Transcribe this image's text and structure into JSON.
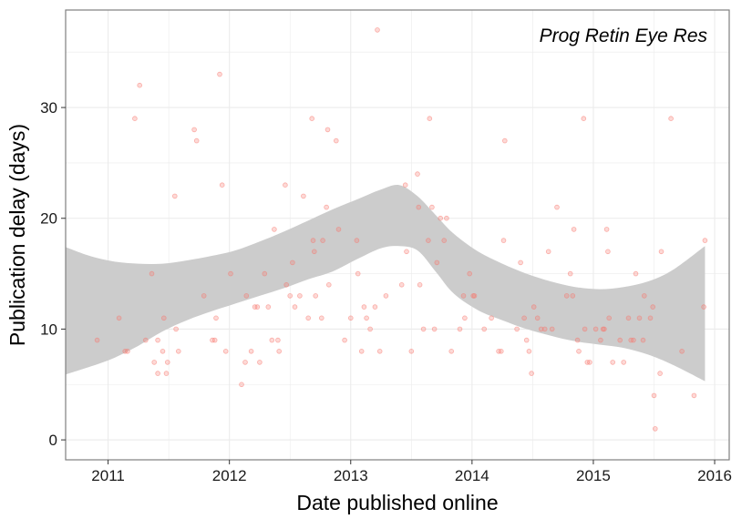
{
  "chart_data": {
    "type": "scatter",
    "annotation": "Prog Retin Eye Res",
    "xlabel": "Date published online",
    "ylabel": "Publication delay (days)",
    "xlim": [
      2010.65,
      2016.12
    ],
    "ylim": [
      -1.8,
      38.8
    ],
    "x_ticks": [
      2011,
      2012,
      2013,
      2014,
      2015,
      2016
    ],
    "y_ticks": [
      0,
      10,
      20,
      30
    ],
    "grid": true,
    "colors": {
      "points": "#f8766d",
      "band": "#cccccc",
      "grid": "#ebebeb",
      "frame": "#7f7f7f"
    },
    "points": [
      {
        "x": 2010.91,
        "y": 9
      },
      {
        "x": 2011.09,
        "y": 11
      },
      {
        "x": 2011.14,
        "y": 8
      },
      {
        "x": 2011.16,
        "y": 8
      },
      {
        "x": 2011.22,
        "y": 29
      },
      {
        "x": 2011.26,
        "y": 32
      },
      {
        "x": 2011.31,
        "y": 9
      },
      {
        "x": 2011.36,
        "y": 15
      },
      {
        "x": 2011.38,
        "y": 7
      },
      {
        "x": 2011.41,
        "y": 9
      },
      {
        "x": 2011.41,
        "y": 6
      },
      {
        "x": 2011.45,
        "y": 8
      },
      {
        "x": 2011.46,
        "y": 11
      },
      {
        "x": 2011.48,
        "y": 6
      },
      {
        "x": 2011.49,
        "y": 7
      },
      {
        "x": 2011.55,
        "y": 22
      },
      {
        "x": 2011.56,
        "y": 10
      },
      {
        "x": 2011.58,
        "y": 8
      },
      {
        "x": 2011.71,
        "y": 28
      },
      {
        "x": 2011.73,
        "y": 27
      },
      {
        "x": 2011.79,
        "y": 13
      },
      {
        "x": 2011.86,
        "y": 9
      },
      {
        "x": 2011.88,
        "y": 9
      },
      {
        "x": 2011.89,
        "y": 11
      },
      {
        "x": 2011.92,
        "y": 33
      },
      {
        "x": 2011.94,
        "y": 23
      },
      {
        "x": 2011.97,
        "y": 8
      },
      {
        "x": 2012.01,
        "y": 15
      },
      {
        "x": 2012.1,
        "y": 5
      },
      {
        "x": 2012.13,
        "y": 7
      },
      {
        "x": 2012.14,
        "y": 13
      },
      {
        "x": 2012.18,
        "y": 8
      },
      {
        "x": 2012.21,
        "y": 12
      },
      {
        "x": 2012.23,
        "y": 12
      },
      {
        "x": 2012.25,
        "y": 7
      },
      {
        "x": 2012.29,
        "y": 15
      },
      {
        "x": 2012.32,
        "y": 12
      },
      {
        "x": 2012.35,
        "y": 9
      },
      {
        "x": 2012.37,
        "y": 19
      },
      {
        "x": 2012.4,
        "y": 9
      },
      {
        "x": 2012.41,
        "y": 8
      },
      {
        "x": 2012.46,
        "y": 23
      },
      {
        "x": 2012.47,
        "y": 14
      },
      {
        "x": 2012.5,
        "y": 13
      },
      {
        "x": 2012.52,
        "y": 16
      },
      {
        "x": 2012.54,
        "y": 12
      },
      {
        "x": 2012.58,
        "y": 13
      },
      {
        "x": 2012.61,
        "y": 22
      },
      {
        "x": 2012.65,
        "y": 11
      },
      {
        "x": 2012.68,
        "y": 29
      },
      {
        "x": 2012.69,
        "y": 18
      },
      {
        "x": 2012.7,
        "y": 17
      },
      {
        "x": 2012.71,
        "y": 13
      },
      {
        "x": 2012.76,
        "y": 11
      },
      {
        "x": 2012.77,
        "y": 18
      },
      {
        "x": 2012.8,
        "y": 21
      },
      {
        "x": 2012.81,
        "y": 28
      },
      {
        "x": 2012.82,
        "y": 14
      },
      {
        "x": 2012.88,
        "y": 27
      },
      {
        "x": 2012.9,
        "y": 19
      },
      {
        "x": 2012.95,
        "y": 9
      },
      {
        "x": 2013.0,
        "y": 11
      },
      {
        "x": 2013.05,
        "y": 18
      },
      {
        "x": 2013.06,
        "y": 15
      },
      {
        "x": 2013.09,
        "y": 8
      },
      {
        "x": 2013.11,
        "y": 12
      },
      {
        "x": 2013.13,
        "y": 11
      },
      {
        "x": 2013.16,
        "y": 10
      },
      {
        "x": 2013.2,
        "y": 12
      },
      {
        "x": 2013.22,
        "y": 37
      },
      {
        "x": 2013.24,
        "y": 8
      },
      {
        "x": 2013.29,
        "y": 13
      },
      {
        "x": 2013.42,
        "y": 14
      },
      {
        "x": 2013.45,
        "y": 23
      },
      {
        "x": 2013.46,
        "y": 17
      },
      {
        "x": 2013.5,
        "y": 8
      },
      {
        "x": 2013.55,
        "y": 24
      },
      {
        "x": 2013.56,
        "y": 21
      },
      {
        "x": 2013.57,
        "y": 14
      },
      {
        "x": 2013.6,
        "y": 10
      },
      {
        "x": 2013.64,
        "y": 18
      },
      {
        "x": 2013.65,
        "y": 29
      },
      {
        "x": 2013.67,
        "y": 21
      },
      {
        "x": 2013.69,
        "y": 10
      },
      {
        "x": 2013.71,
        "y": 16
      },
      {
        "x": 2013.74,
        "y": 20
      },
      {
        "x": 2013.77,
        "y": 18
      },
      {
        "x": 2013.79,
        "y": 20
      },
      {
        "x": 2013.83,
        "y": 8
      },
      {
        "x": 2013.9,
        "y": 10
      },
      {
        "x": 2013.93,
        "y": 13
      },
      {
        "x": 2013.94,
        "y": 11
      },
      {
        "x": 2013.98,
        "y": 15
      },
      {
        "x": 2014.01,
        "y": 13
      },
      {
        "x": 2014.02,
        "y": 13
      },
      {
        "x": 2014.1,
        "y": 10
      },
      {
        "x": 2014.16,
        "y": 11
      },
      {
        "x": 2014.22,
        "y": 8
      },
      {
        "x": 2014.24,
        "y": 8
      },
      {
        "x": 2014.26,
        "y": 18
      },
      {
        "x": 2014.27,
        "y": 27
      },
      {
        "x": 2014.37,
        "y": 10
      },
      {
        "x": 2014.4,
        "y": 16
      },
      {
        "x": 2014.43,
        "y": 11
      },
      {
        "x": 2014.45,
        "y": 9
      },
      {
        "x": 2014.47,
        "y": 8
      },
      {
        "x": 2014.49,
        "y": 6
      },
      {
        "x": 2014.51,
        "y": 12
      },
      {
        "x": 2014.54,
        "y": 11
      },
      {
        "x": 2014.57,
        "y": 10
      },
      {
        "x": 2014.6,
        "y": 10
      },
      {
        "x": 2014.63,
        "y": 17
      },
      {
        "x": 2014.66,
        "y": 10
      },
      {
        "x": 2014.7,
        "y": 21
      },
      {
        "x": 2014.78,
        "y": 13
      },
      {
        "x": 2014.81,
        "y": 15
      },
      {
        "x": 2014.83,
        "y": 13
      },
      {
        "x": 2014.84,
        "y": 19
      },
      {
        "x": 2014.87,
        "y": 9
      },
      {
        "x": 2014.88,
        "y": 8
      },
      {
        "x": 2014.92,
        "y": 29
      },
      {
        "x": 2014.93,
        "y": 10
      },
      {
        "x": 2014.95,
        "y": 7
      },
      {
        "x": 2014.97,
        "y": 7
      },
      {
        "x": 2015.02,
        "y": 10
      },
      {
        "x": 2015.06,
        "y": 9
      },
      {
        "x": 2015.08,
        "y": 10
      },
      {
        "x": 2015.09,
        "y": 10
      },
      {
        "x": 2015.11,
        "y": 19
      },
      {
        "x": 2015.12,
        "y": 17
      },
      {
        "x": 2015.13,
        "y": 11
      },
      {
        "x": 2015.16,
        "y": 7
      },
      {
        "x": 2015.22,
        "y": 9
      },
      {
        "x": 2015.25,
        "y": 7
      },
      {
        "x": 2015.29,
        "y": 11
      },
      {
        "x": 2015.31,
        "y": 9
      },
      {
        "x": 2015.33,
        "y": 9
      },
      {
        "x": 2015.35,
        "y": 15
      },
      {
        "x": 2015.38,
        "y": 11
      },
      {
        "x": 2015.41,
        "y": 9
      },
      {
        "x": 2015.42,
        "y": 13
      },
      {
        "x": 2015.47,
        "y": 11
      },
      {
        "x": 2015.49,
        "y": 12
      },
      {
        "x": 2015.5,
        "y": 4
      },
      {
        "x": 2015.51,
        "y": 1
      },
      {
        "x": 2015.55,
        "y": 6
      },
      {
        "x": 2015.56,
        "y": 17
      },
      {
        "x": 2015.64,
        "y": 29
      },
      {
        "x": 2015.73,
        "y": 8
      },
      {
        "x": 2015.83,
        "y": 4
      },
      {
        "x": 2015.91,
        "y": 12
      },
      {
        "x": 2015.92,
        "y": 18
      }
    ],
    "smooth_band": {
      "x": [
        2010.65,
        2010.85,
        2011.05,
        2011.25,
        2011.45,
        2011.65,
        2011.85,
        2012.05,
        2012.25,
        2012.45,
        2012.65,
        2012.85,
        2013.05,
        2013.25,
        2013.4,
        2013.55,
        2013.7,
        2013.85,
        2014.05,
        2014.25,
        2014.45,
        2014.65,
        2014.85,
        2015.05,
        2015.25,
        2015.45,
        2015.65,
        2015.92
      ],
      "upper": [
        17.4,
        16.6,
        16.1,
        15.9,
        15.9,
        16.2,
        16.6,
        17.1,
        17.9,
        18.8,
        19.8,
        20.8,
        21.7,
        22.6,
        23.0,
        22.0,
        20.3,
        18.6,
        17.0,
        15.9,
        15.0,
        14.3,
        13.8,
        13.6,
        13.8,
        14.3,
        15.3,
        17.5
      ],
      "lower": [
        5.9,
        6.6,
        7.4,
        8.5,
        9.8,
        10.8,
        11.6,
        12.3,
        13.0,
        13.7,
        14.5,
        15.2,
        16.3,
        17.3,
        17.5,
        17.1,
        15.2,
        13.2,
        11.7,
        10.8,
        10.0,
        9.4,
        8.9,
        8.6,
        8.3,
        7.7,
        6.8,
        5.3
      ]
    }
  }
}
